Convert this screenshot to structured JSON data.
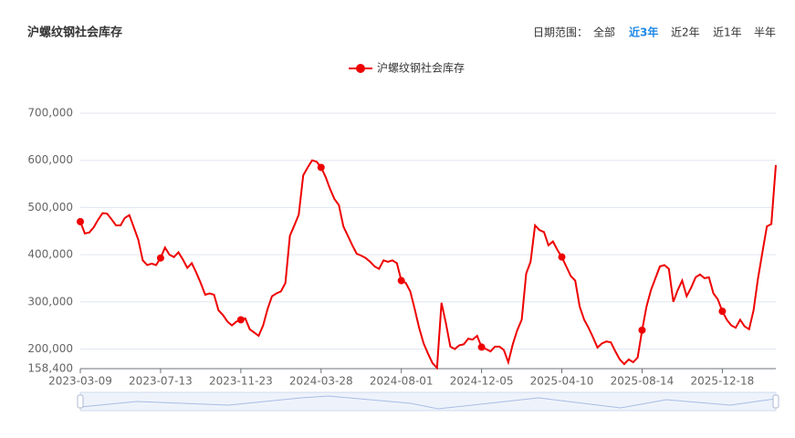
{
  "chart_data": {
    "type": "line",
    "title": "沪螺纹钢社会库存",
    "range_label": "日期范围：",
    "range_options": [
      "全部",
      "近3年",
      "近2年",
      "近1年",
      "半年"
    ],
    "range_active": 1,
    "categories": [
      "2023-03-09",
      null,
      null,
      null,
      null,
      null,
      null,
      null,
      null,
      null,
      null,
      null,
      null,
      null,
      null,
      null,
      null,
      null,
      "2023-07-13",
      null,
      null,
      null,
      null,
      null,
      null,
      null,
      null,
      null,
      null,
      null,
      null,
      null,
      null,
      null,
      null,
      null,
      "2023-11-23",
      null,
      null,
      null,
      null,
      null,
      null,
      null,
      null,
      null,
      null,
      null,
      null,
      null,
      null,
      null,
      null,
      null,
      "2024-03-28",
      null,
      null,
      null,
      null,
      null,
      null,
      null,
      null,
      null,
      null,
      null,
      null,
      null,
      null,
      null,
      null,
      null,
      "2024-08-01",
      null,
      null,
      null,
      null,
      null,
      null,
      null,
      null,
      null,
      null,
      null,
      null,
      null,
      null,
      null,
      null,
      null,
      "2024-12-05",
      null,
      null,
      null,
      null,
      null,
      null,
      null,
      null,
      null,
      null,
      null,
      null,
      null,
      null,
      null,
      null,
      null,
      "2025-04-10",
      null,
      null,
      null,
      null,
      null,
      null,
      null,
      null,
      null,
      null,
      null,
      null,
      null,
      null,
      null,
      null,
      null,
      "2025-08-14",
      null,
      null,
      null,
      null,
      null,
      null,
      null,
      null,
      null,
      null,
      null,
      null,
      null,
      null,
      null,
      null,
      null,
      "2025-12-18",
      null,
      null,
      null,
      null,
      null,
      null,
      null,
      null,
      null,
      null,
      null,
      null
    ],
    "series": [
      {
        "name": "沪螺纹钢社会库存",
        "color": "#ee0000",
        "values": [
          470000,
          445000,
          447000,
          458000,
          474000,
          488000,
          487000,
          475000,
          462000,
          462000,
          478000,
          484000,
          458000,
          432000,
          388000,
          378000,
          381000,
          378000,
          393000,
          415000,
          400000,
          395000,
          405000,
          390000,
          372000,
          382000,
          362000,
          340000,
          315000,
          318000,
          315000,
          282000,
          272000,
          258000,
          250000,
          258000,
          262000,
          265000,
          242000,
          235000,
          228000,
          250000,
          285000,
          312000,
          318000,
          322000,
          340000,
          440000,
          462000,
          485000,
          568000,
          585000,
          600000,
          597000,
          585000,
          565000,
          540000,
          518000,
          505000,
          460000,
          440000,
          420000,
          402000,
          398000,
          393000,
          385000,
          375000,
          370000,
          388000,
          385000,
          388000,
          382000,
          345000,
          340000,
          322000,
          285000,
          245000,
          212000,
          190000,
          170000,
          160000,
          298000,
          255000,
          205000,
          200000,
          208000,
          210000,
          222000,
          220000,
          228000,
          204000,
          200000,
          195000,
          205000,
          205000,
          198000,
          172000,
          210000,
          240000,
          262000,
          360000,
          385000,
          462000,
          452000,
          448000,
          420000,
          428000,
          410000,
          395000,
          375000,
          355000,
          345000,
          290000,
          262000,
          245000,
          225000,
          203000,
          212000,
          216000,
          214000,
          195000,
          178000,
          168000,
          178000,
          172000,
          182000,
          240000,
          290000,
          325000,
          350000,
          375000,
          378000,
          370000,
          300000,
          325000,
          345000,
          312000,
          330000,
          352000,
          358000,
          350000,
          352000,
          318000,
          305000,
          280000,
          262000,
          250000,
          245000,
          262000,
          248000,
          242000,
          282000,
          350000,
          405000,
          460000,
          465000,
          590000
        ]
      }
    ],
    "ylim": [
      158400,
      700000
    ],
    "yticks": [
      {
        "value": 158400,
        "label": "158,400"
      },
      {
        "value": 200000,
        "label": "200,000"
      },
      {
        "value": 300000,
        "label": "300,000"
      },
      {
        "value": 400000,
        "label": "400,000"
      },
      {
        "value": 500000,
        "label": "500,000"
      },
      {
        "value": 600000,
        "label": "600,000"
      },
      {
        "value": 700000,
        "label": "700,000"
      }
    ],
    "grid": true
  }
}
